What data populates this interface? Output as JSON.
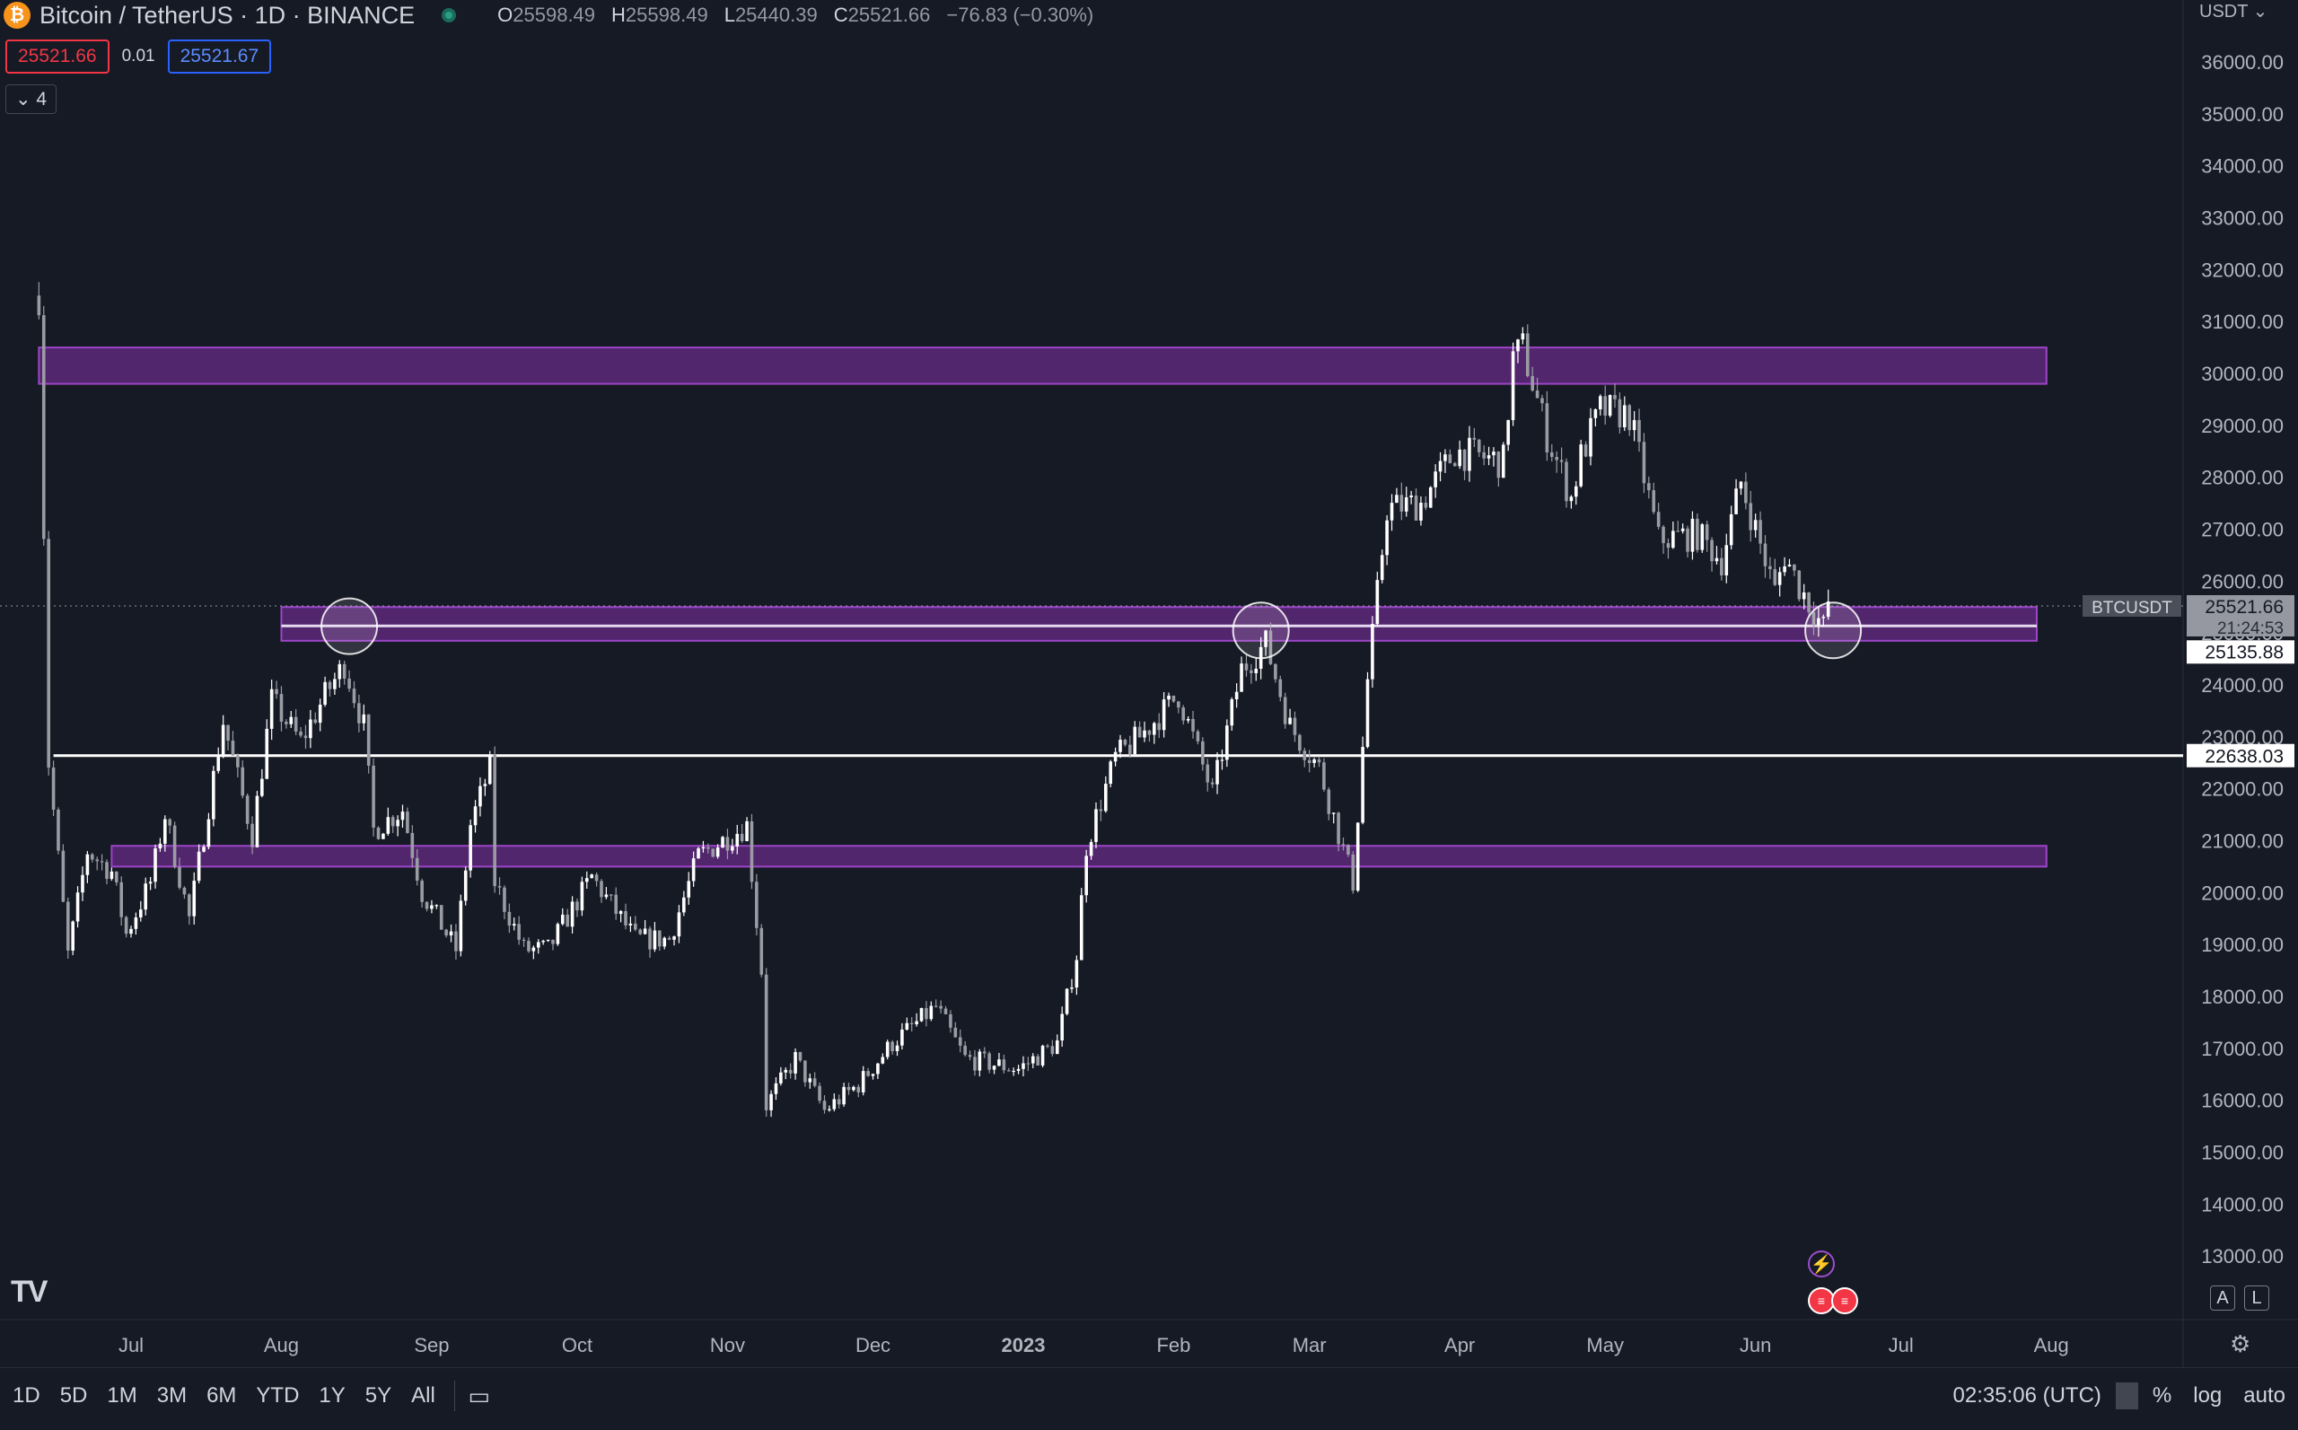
{
  "header": {
    "coin_icon_label": "₿",
    "title": "Bitcoin / TetherUS · 1D · BINANCE",
    "open_label": "O",
    "open": "25598.49",
    "high_label": "H",
    "high": "25598.49",
    "low_label": "L",
    "low": "25440.39",
    "close_label": "C",
    "close": "25521.66",
    "change": "−76.83 (−0.30%)",
    "bid": "25521.66",
    "spread": "0.01",
    "ask": "25521.67",
    "indicators_toggle": "⌄ 4",
    "currency": "USDT ⌄"
  },
  "colors": {
    "background": "#161a25",
    "candle": "#ffffff",
    "candle_bear": "#9a9ca3",
    "zone_fill": "#7b2f9e",
    "zone_border": "#9c45c6",
    "level_line": "#ffffff"
  },
  "chart_data": {
    "type": "candlestick",
    "symbol": "BTCUSDT",
    "y_ticks": [
      13000,
      14000,
      15000,
      16000,
      17000,
      18000,
      19000,
      20000,
      21000,
      22000,
      23000,
      24000,
      25000,
      26000,
      27000,
      28000,
      29000,
      30000,
      31000,
      32000,
      33000,
      34000,
      35000,
      36000
    ],
    "y_tick_labels": [
      "13000.00",
      "14000.00",
      "15000.00",
      "16000.00",
      "17000.00",
      "18000.00",
      "19000.00",
      "20000.00",
      "21000.00",
      "22000.00",
      "23000.00",
      "24000.00",
      "25000.00",
      "26000.00",
      "27000.00",
      "28000.00",
      "29000.00",
      "30000.00",
      "31000.00",
      "32000.00",
      "33000.00",
      "34000.00",
      "35000.00",
      "36000.00"
    ],
    "ylim": [
      12500,
      36300
    ],
    "x_ticks": [
      "Jul",
      "Aug",
      "Sep",
      "Oct",
      "Nov",
      "Dec",
      "2023",
      "Feb",
      "Mar",
      "Apr",
      "May",
      "Jun",
      "Jul",
      "Aug"
    ],
    "x_tick_dates": [
      "2022-07-01",
      "2022-08-01",
      "2022-09-01",
      "2022-10-01",
      "2022-11-01",
      "2022-12-01",
      "2023-01-01",
      "2023-02-01",
      "2023-03-01",
      "2023-04-01",
      "2023-05-01",
      "2023-06-01",
      "2023-07-01",
      "2023-08-01"
    ],
    "price_path": [
      [
        "2022-06-12",
        31500
      ],
      [
        "2022-06-14",
        22500
      ],
      [
        "2022-06-18",
        18800
      ],
      [
        "2022-06-22",
        20800
      ],
      [
        "2022-06-27",
        20400
      ],
      [
        "2022-06-30",
        19200
      ],
      [
        "2022-07-05",
        20200
      ],
      [
        "2022-07-08",
        21500
      ],
      [
        "2022-07-13",
        19500
      ],
      [
        "2022-07-20",
        23300
      ],
      [
        "2022-07-26",
        21100
      ],
      [
        "2022-07-30",
        23700
      ],
      [
        "2022-08-05",
        22900
      ],
      [
        "2022-08-10",
        23800
      ],
      [
        "2022-08-14",
        24400
      ],
      [
        "2022-08-18",
        23200
      ],
      [
        "2022-08-20",
        21200
      ],
      [
        "2022-08-26",
        21600
      ],
      [
        "2022-08-30",
        20000
      ],
      [
        "2022-09-06",
        18900
      ],
      [
        "2022-09-09",
        21300
      ],
      [
        "2022-09-13",
        22400
      ],
      [
        "2022-09-14",
        20200
      ],
      [
        "2022-09-20",
        18900
      ],
      [
        "2022-09-25",
        18900
      ],
      [
        "2022-10-04",
        20300
      ],
      [
        "2022-10-13",
        19100
      ],
      [
        "2022-10-20",
        19100
      ],
      [
        "2022-10-26",
        20700
      ],
      [
        "2022-11-05",
        21300
      ],
      [
        "2022-11-08",
        18500
      ],
      [
        "2022-11-09",
        15900
      ],
      [
        "2022-11-15",
        16800
      ],
      [
        "2022-11-21",
        15800
      ],
      [
        "2022-11-28",
        16300
      ],
      [
        "2022-12-05",
        17100
      ],
      [
        "2022-12-14",
        17800
      ],
      [
        "2022-12-20",
        16800
      ],
      [
        "2022-12-31",
        16600
      ],
      [
        "2023-01-08",
        17100
      ],
      [
        "2023-01-12",
        18800
      ],
      [
        "2023-01-14",
        20900
      ],
      [
        "2023-01-20",
        22600
      ],
      [
        "2023-01-25",
        23000
      ],
      [
        "2023-02-02",
        23800
      ],
      [
        "2023-02-09",
        21900
      ],
      [
        "2023-02-15",
        24300
      ],
      [
        "2023-02-20",
        24800
      ],
      [
        "2023-02-25",
        23200
      ],
      [
        "2023-03-03",
        22400
      ],
      [
        "2023-03-10",
        20200
      ],
      [
        "2023-03-13",
        24100
      ],
      [
        "2023-03-17",
        27400
      ],
      [
        "2023-03-24",
        27500
      ],
      [
        "2023-03-31",
        28500
      ],
      [
        "2023-04-10",
        28300
      ],
      [
        "2023-04-12",
        30300
      ],
      [
        "2023-04-14",
        30500
      ],
      [
        "2023-04-19",
        28800
      ],
      [
        "2023-04-24",
        27600
      ],
      [
        "2023-04-26",
        28400
      ],
      [
        "2023-04-30",
        29300
      ],
      [
        "2023-05-06",
        29200
      ],
      [
        "2023-05-10",
        27600
      ],
      [
        "2023-05-12",
        26800
      ],
      [
        "2023-05-20",
        26900
      ],
      [
        "2023-05-25",
        26400
      ],
      [
        "2023-05-29",
        27900
      ],
      [
        "2023-06-05",
        25800
      ],
      [
        "2023-06-07",
        26500
      ],
      [
        "2023-06-10",
        25900
      ],
      [
        "2023-06-15",
        25100
      ],
      [
        "2023-06-16",
        25600
      ]
    ],
    "zones": [
      {
        "from": 29800,
        "to": 30500,
        "start": "2022-06-12",
        "end": "2023-07-31"
      },
      {
        "from": 24850,
        "to": 25500,
        "start": "2022-08-01",
        "end": "2023-07-29"
      },
      {
        "from": 20500,
        "to": 20900,
        "start": "2022-06-27",
        "end": "2023-07-31"
      }
    ],
    "level_line": {
      "value": 22638.03,
      "label": "22638.03",
      "start": "2022-06-15"
    },
    "inner_line": {
      "value": 25135.88,
      "label": "25135.88"
    },
    "last_price": {
      "value": 25521.66,
      "label": "25521.66",
      "symbol": "BTCUSDT",
      "countdown": "21:24:53"
    },
    "touch_circles": [
      {
        "date": "2022-08-15",
        "value": 25130
      },
      {
        "date": "2023-02-19",
        "value": 25050
      },
      {
        "date": "2023-06-17",
        "value": 25050
      }
    ]
  },
  "bottom_bar": {
    "timeframes": [
      "1D",
      "5D",
      "1M",
      "3M",
      "6M",
      "YTD",
      "1Y",
      "5Y",
      "All"
    ],
    "clock": "02:35:06 (UTC)",
    "percent": "%",
    "log": "log",
    "auto": "auto",
    "scale_a": "A",
    "scale_l": "L",
    "logo": "TV"
  }
}
